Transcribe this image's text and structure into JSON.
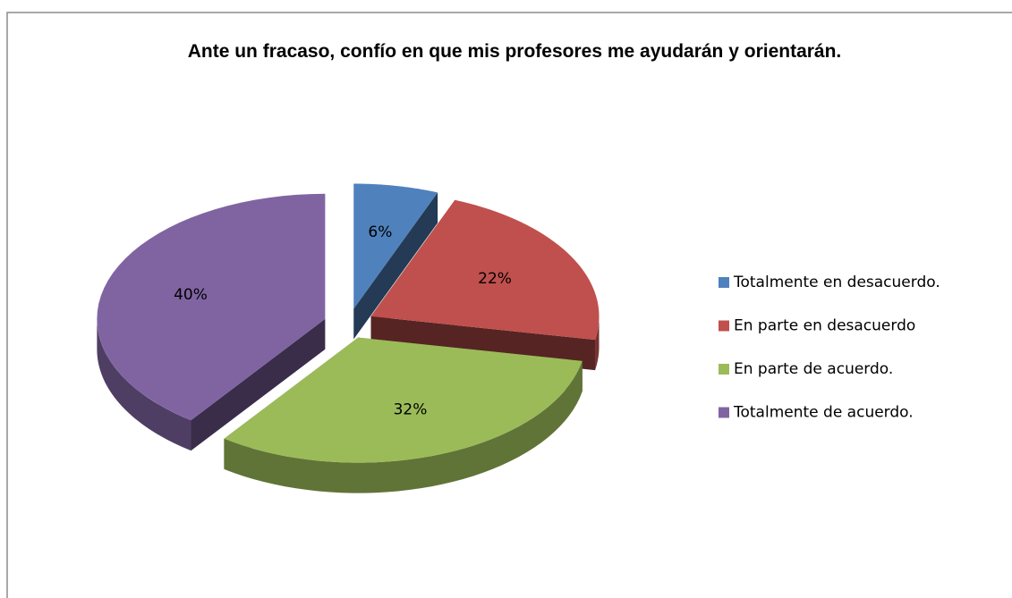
{
  "chart_data": {
    "type": "pie",
    "title": "Ante un fracaso, confío en que mis profesores me ayudarán y orientarán.",
    "categories": [
      "Totalmente en desacuerdo.",
      "En parte en desacuerdo",
      "En parte de acuerdo.",
      "Totalmente de acuerdo."
    ],
    "values": [
      6,
      22,
      32,
      40
    ],
    "value_labels": [
      "6%",
      "22%",
      "32%",
      "40%"
    ],
    "colors": [
      "#4f81bd",
      "#c0504d",
      "#9bbb59",
      "#8064a2"
    ],
    "legend": "right"
  }
}
